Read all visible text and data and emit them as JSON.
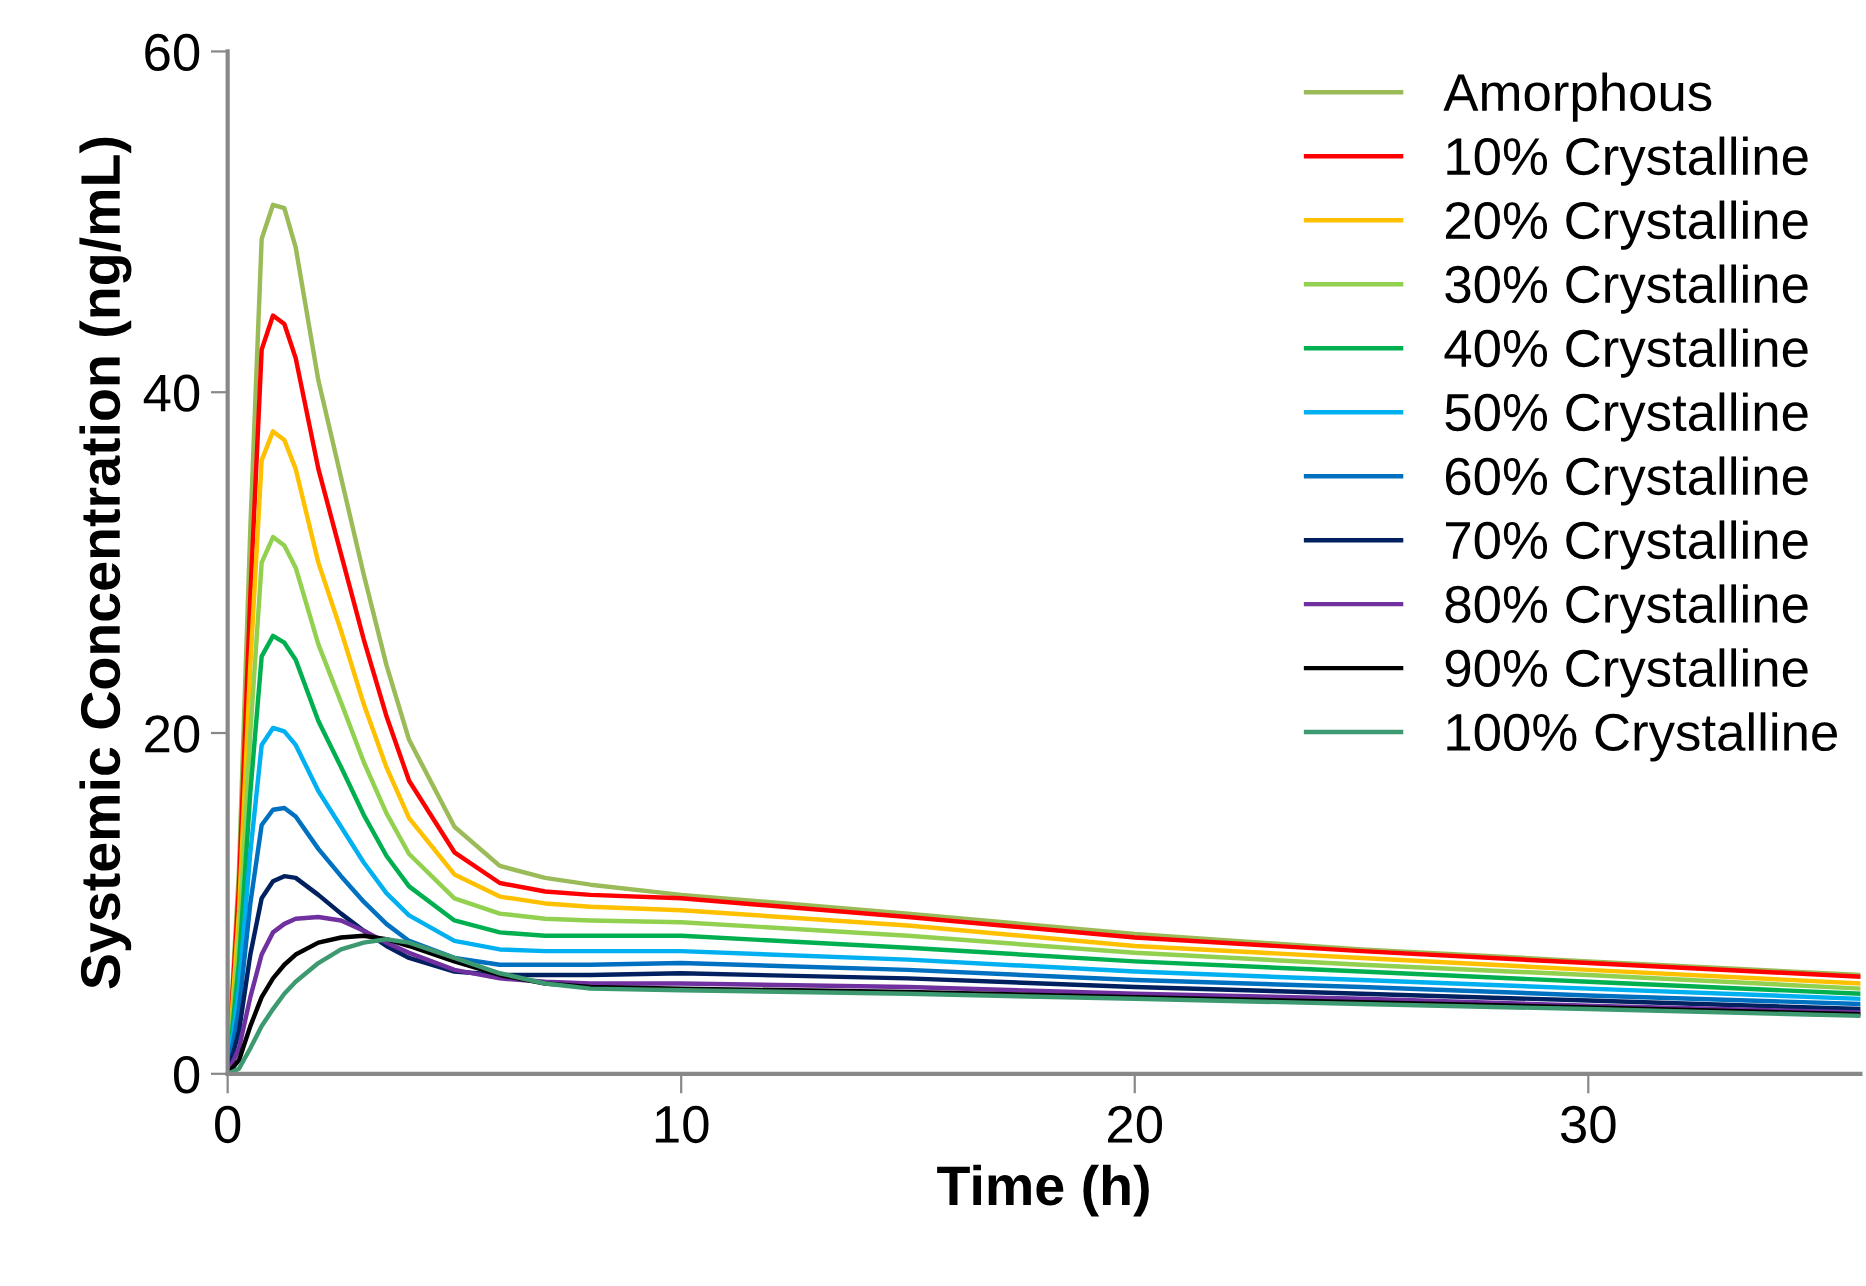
{
  "chart_data": {
    "type": "line",
    "xlabel": "Time (h)",
    "ylabel": "Systemic Concentration (ng/mL)",
    "x": [
      0,
      0.25,
      0.5,
      0.75,
      1,
      1.25,
      1.5,
      2,
      2.5,
      3,
      3.5,
      4,
      5,
      6,
      7,
      8,
      10,
      15,
      20,
      25,
      30,
      36
    ],
    "xlim": [
      0,
      36
    ],
    "xticks": [
      0,
      10,
      20,
      30
    ],
    "ylim": [
      0,
      60
    ],
    "yticks": [
      0,
      20,
      40,
      60
    ],
    "grid": false,
    "legend": "top right",
    "marker": "none",
    "line_style": "solid",
    "series": [
      {
        "name": "Amorphous",
        "color": "#9bbb59",
        "values": [
          0,
          12,
          32,
          49,
          51,
          50.8,
          48.5,
          40.7,
          35,
          29.3,
          24,
          19.6,
          14.5,
          12.2,
          11.5,
          11.1,
          10.5,
          9.4,
          8.2,
          7.3,
          6.6,
          5.8
        ]
      },
      {
        "name": "10% Crystalline",
        "color": "#ff0000",
        "values": [
          0,
          11,
          28,
          42.5,
          44.5,
          44,
          42,
          35.5,
          30.5,
          25.5,
          21,
          17.2,
          13,
          11.2,
          10.7,
          10.5,
          10.3,
          9.2,
          8.0,
          7.2,
          6.5,
          5.7
        ]
      },
      {
        "name": "20% Crystalline",
        "color": "#ffc000",
        "values": [
          0,
          9.5,
          24,
          36,
          37.7,
          37.2,
          35.5,
          30,
          26,
          21.7,
          18,
          15,
          11.7,
          10.4,
          10,
          9.8,
          9.6,
          8.7,
          7.5,
          6.8,
          6.1,
          5.3
        ]
      },
      {
        "name": "30% Crystalline",
        "color": "#92d050",
        "values": [
          0,
          8,
          20,
          30,
          31.5,
          31,
          29.7,
          25.2,
          21.8,
          18.3,
          15.3,
          12.9,
          10.3,
          9.4,
          9.1,
          9.0,
          8.9,
          8.1,
          7.1,
          6.4,
          5.8,
          5.0
        ]
      },
      {
        "name": "40% Crystalline",
        "color": "#00b050",
        "values": [
          0,
          6.5,
          16.5,
          24.5,
          25.7,
          25.3,
          24.3,
          20.7,
          18,
          15.2,
          12.8,
          11,
          9,
          8.3,
          8.1,
          8.1,
          8.1,
          7.4,
          6.6,
          6.0,
          5.4,
          4.7
        ]
      },
      {
        "name": "50% Crystalline",
        "color": "#00b0f0",
        "values": [
          0,
          5,
          13,
          19.3,
          20.3,
          20.1,
          19.3,
          16.6,
          14.5,
          12.4,
          10.6,
          9.3,
          7.8,
          7.3,
          7.2,
          7.2,
          7.2,
          6.7,
          6.0,
          5.5,
          5.0,
          4.4
        ]
      },
      {
        "name": "60% Crystalline",
        "color": "#0070c0",
        "values": [
          0,
          3.8,
          10,
          14.6,
          15.5,
          15.6,
          15.1,
          13.2,
          11.6,
          10.1,
          8.8,
          7.8,
          6.8,
          6.4,
          6.4,
          6.4,
          6.5,
          6.1,
          5.5,
          5.1,
          4.6,
          4.1
        ]
      },
      {
        "name": "70% Crystalline",
        "color": "#002060",
        "values": [
          0,
          2.5,
          7,
          10.3,
          11.3,
          11.6,
          11.5,
          10.5,
          9.4,
          8.4,
          7.5,
          6.8,
          6.0,
          5.8,
          5.8,
          5.8,
          5.9,
          5.6,
          5.1,
          4.7,
          4.3,
          3.8
        ]
      },
      {
        "name": "80% Crystalline",
        "color": "#7030a0",
        "values": [
          0,
          1.5,
          4.5,
          7,
          8.3,
          8.8,
          9.1,
          9.2,
          9.0,
          8.4,
          7.7,
          7.1,
          6.1,
          5.6,
          5.4,
          5.3,
          5.3,
          5.1,
          4.7,
          4.4,
          4.0,
          3.6
        ]
      },
      {
        "name": "90% Crystalline",
        "color": "#000000",
        "values": [
          0,
          0.8,
          2.8,
          4.5,
          5.6,
          6.4,
          7.0,
          7.7,
          8.0,
          8.1,
          7.9,
          7.5,
          6.6,
          5.8,
          5.3,
          5.1,
          5.0,
          4.8,
          4.5,
          4.2,
          3.9,
          3.5
        ]
      },
      {
        "name": "100% Crystalline",
        "color": "#3d9970",
        "values": [
          0,
          0.3,
          1.5,
          2.8,
          3.8,
          4.7,
          5.4,
          6.5,
          7.3,
          7.7,
          7.9,
          7.7,
          6.8,
          5.9,
          5.3,
          5.0,
          4.9,
          4.7,
          4.4,
          4.1,
          3.8,
          3.4
        ]
      }
    ]
  }
}
